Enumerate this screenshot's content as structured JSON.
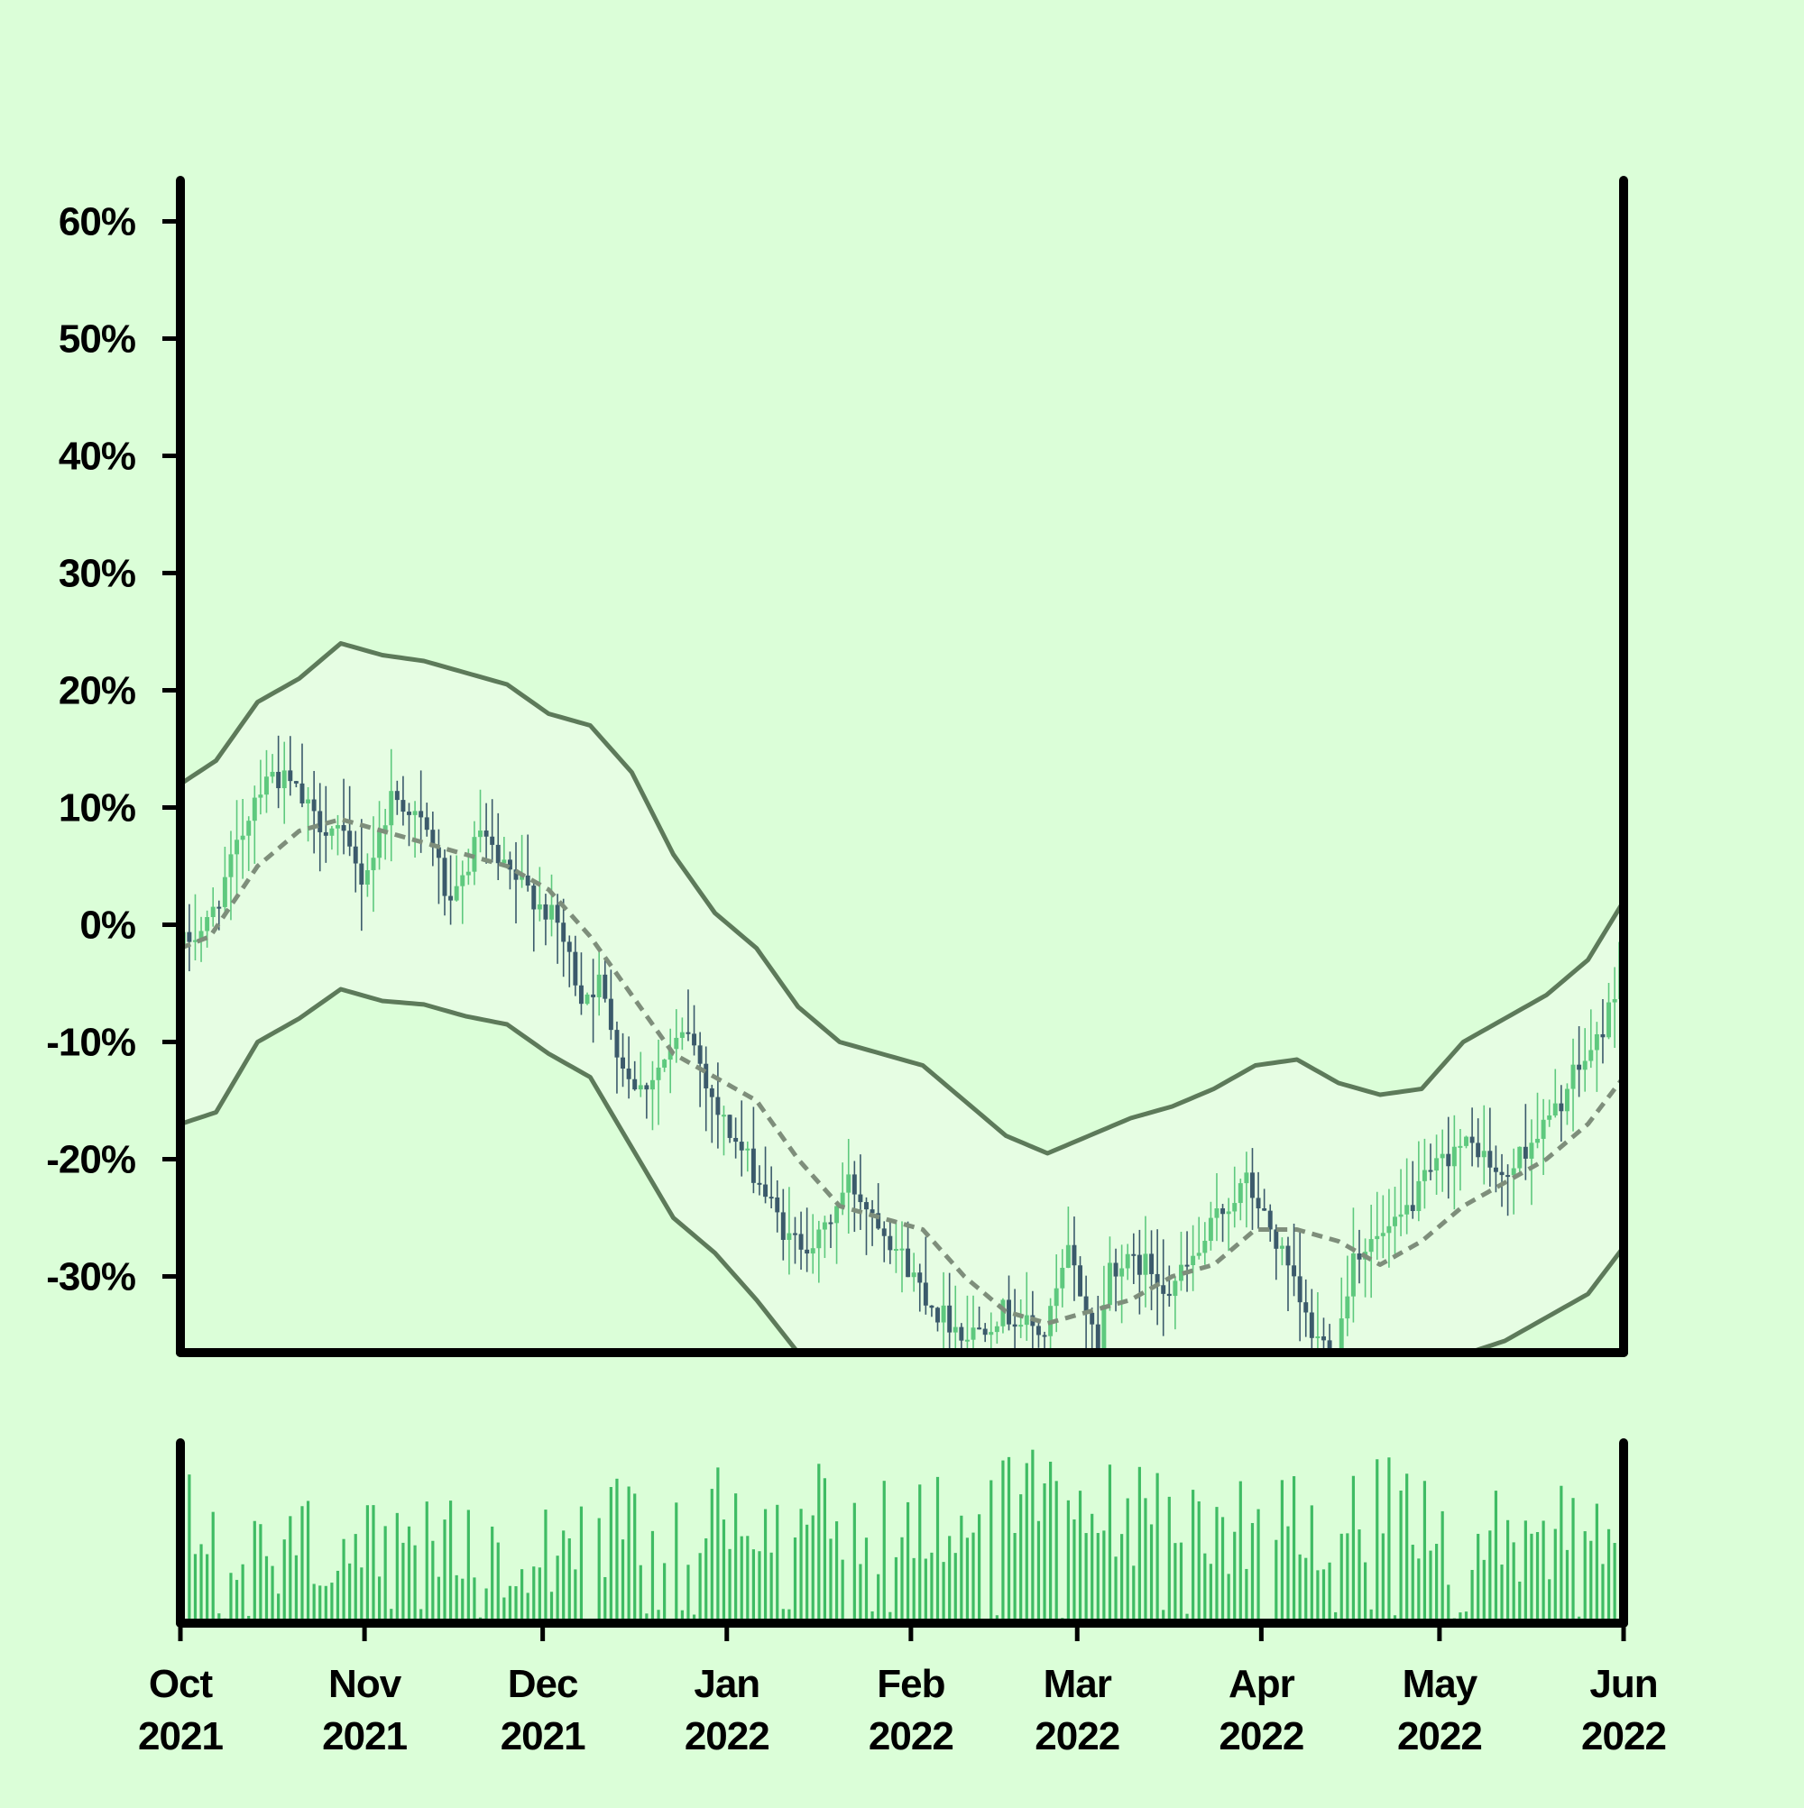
{
  "chart_data": {
    "type": "candlestick",
    "title": "",
    "xlabel": "",
    "ylabel": "",
    "y_unit": "%",
    "ylim": [
      -36.5,
      63.5
    ],
    "y_ticks": [
      {
        "value": 60,
        "label": "60%"
      },
      {
        "value": 50,
        "label": "50%"
      },
      {
        "value": 40,
        "label": "40%"
      },
      {
        "value": 30,
        "label": "30%"
      },
      {
        "value": 20,
        "label": "20%"
      },
      {
        "value": 10,
        "label": "10%"
      },
      {
        "value": 0,
        "label": "0%"
      },
      {
        "value": -10,
        "label": "-10%"
      },
      {
        "value": -20,
        "label": "-20%"
      },
      {
        "value": -30,
        "label": "-30%"
      }
    ],
    "x_range": [
      "2021-10-01",
      "2022-06-01"
    ],
    "x_ticks": [
      {
        "date": "2021-10-01",
        "month": "Oct",
        "year": "2021"
      },
      {
        "date": "2021-11-01",
        "month": "Nov",
        "year": "2021"
      },
      {
        "date": "2021-12-01",
        "month": "Dec",
        "year": "2021"
      },
      {
        "date": "2022-01-01",
        "month": "Jan",
        "year": "2022"
      },
      {
        "date": "2022-02-01",
        "month": "Feb",
        "year": "2022"
      },
      {
        "date": "2022-03-01",
        "month": "Mar",
        "year": "2022"
      },
      {
        "date": "2022-04-01",
        "month": "Apr",
        "year": "2022"
      },
      {
        "date": "2022-05-01",
        "month": "May",
        "year": "2022"
      },
      {
        "date": "2022-06-01",
        "month": "Jun",
        "year": "2022"
      }
    ],
    "grid": false,
    "legend": "none",
    "close_path": [
      [
        "2021-10-01",
        -2
      ],
      [
        "2021-10-06",
        0
      ],
      [
        "2021-10-10",
        5
      ],
      [
        "2021-10-14",
        11
      ],
      [
        "2021-10-16",
        13
      ],
      [
        "2021-10-20",
        12
      ],
      [
        "2021-10-24",
        9
      ],
      [
        "2021-10-28",
        8
      ],
      [
        "2021-11-01",
        4
      ],
      [
        "2021-11-03",
        6
      ],
      [
        "2021-11-06",
        11
      ],
      [
        "2021-11-09",
        10
      ],
      [
        "2021-11-13",
        7
      ],
      [
        "2021-11-16",
        1
      ],
      [
        "2021-11-21",
        8
      ],
      [
        "2021-11-24",
        5
      ],
      [
        "2021-11-29",
        3
      ],
      [
        "2021-12-04",
        0
      ],
      [
        "2021-12-08",
        -6
      ],
      [
        "2021-12-11",
        -5
      ],
      [
        "2021-12-15",
        -12
      ],
      [
        "2021-12-18",
        -14
      ],
      [
        "2021-12-23",
        -11
      ],
      [
        "2021-12-26",
        -9
      ],
      [
        "2021-12-31",
        -16
      ],
      [
        "2022-01-06",
        -21
      ],
      [
        "2022-01-12",
        -27
      ],
      [
        "2022-01-17",
        -27
      ],
      [
        "2022-01-22",
        -22
      ],
      [
        "2022-01-27",
        -25
      ],
      [
        "2022-02-02",
        -30
      ],
      [
        "2022-02-06",
        -33
      ],
      [
        "2022-02-11",
        -35
      ],
      [
        "2022-02-17",
        -33
      ],
      [
        "2022-02-24",
        -35
      ],
      [
        "2022-02-28",
        -28
      ],
      [
        "2022-03-05",
        -36
      ],
      [
        "2022-03-07",
        -29
      ],
      [
        "2022-03-13",
        -29
      ],
      [
        "2022-03-17",
        -31
      ],
      [
        "2022-03-22",
        -28
      ],
      [
        "2022-03-25",
        -25
      ],
      [
        "2022-03-30",
        -22
      ],
      [
        "2022-04-04",
        -27
      ],
      [
        "2022-04-10",
        -35
      ],
      [
        "2022-04-14",
        -36.5
      ],
      [
        "2022-04-17",
        -28
      ],
      [
        "2022-04-24",
        -26
      ],
      [
        "2022-04-29",
        -22
      ],
      [
        "2022-05-04",
        -19
      ],
      [
        "2022-05-08",
        -19
      ],
      [
        "2022-05-12",
        -22
      ],
      [
        "2022-05-16",
        -19
      ],
      [
        "2022-05-21",
        -16
      ],
      [
        "2022-05-24",
        -13
      ],
      [
        "2022-05-28",
        -10
      ],
      [
        "2022-05-31",
        -6
      ],
      [
        "2022-06-01",
        -1
      ]
    ],
    "moving_average": [
      [
        "2021-10-01",
        -2
      ],
      [
        "2021-10-06",
        -1
      ],
      [
        "2021-10-14",
        5
      ],
      [
        "2021-10-21",
        8
      ],
      [
        "2021-10-28",
        9
      ],
      [
        "2021-11-04",
        8
      ],
      [
        "2021-11-11",
        7
      ],
      [
        "2021-11-18",
        6
      ],
      [
        "2021-11-25",
        5
      ],
      [
        "2021-12-02",
        3
      ],
      [
        "2021-12-09",
        -1
      ],
      [
        "2021-12-16",
        -6
      ],
      [
        "2021-12-23",
        -11
      ],
      [
        "2021-12-30",
        -13
      ],
      [
        "2022-01-06",
        -15
      ],
      [
        "2022-01-13",
        -20
      ],
      [
        "2022-01-20",
        -24
      ],
      [
        "2022-01-27",
        -25
      ],
      [
        "2022-02-03",
        -26
      ],
      [
        "2022-02-10",
        -30
      ],
      [
        "2022-02-17",
        -33
      ],
      [
        "2022-02-24",
        -34
      ],
      [
        "2022-03-03",
        -33
      ],
      [
        "2022-03-10",
        -32
      ],
      [
        "2022-03-17",
        -30
      ],
      [
        "2022-03-24",
        -29
      ],
      [
        "2022-03-31",
        -26
      ],
      [
        "2022-04-07",
        -26
      ],
      [
        "2022-04-14",
        -27
      ],
      [
        "2022-04-21",
        -29
      ],
      [
        "2022-04-28",
        -27
      ],
      [
        "2022-05-05",
        -24
      ],
      [
        "2022-05-12",
        -22
      ],
      [
        "2022-05-19",
        -20
      ],
      [
        "2022-05-26",
        -17
      ],
      [
        "2022-06-01",
        -13
      ]
    ],
    "upper_band": [
      [
        "2021-10-01",
        12
      ],
      [
        "2021-10-07",
        14
      ],
      [
        "2021-10-14",
        19
      ],
      [
        "2021-10-21",
        21
      ],
      [
        "2021-10-28",
        24
      ],
      [
        "2021-11-04",
        23
      ],
      [
        "2021-11-11",
        22.5
      ],
      [
        "2021-11-18",
        21.5
      ],
      [
        "2021-11-25",
        20.5
      ],
      [
        "2021-12-02",
        18
      ],
      [
        "2021-12-09",
        17
      ],
      [
        "2021-12-16",
        13
      ],
      [
        "2021-12-23",
        6
      ],
      [
        "2021-12-30",
        1
      ],
      [
        "2022-01-06",
        -2
      ],
      [
        "2022-01-13",
        -7
      ],
      [
        "2022-01-20",
        -10
      ],
      [
        "2022-01-27",
        -11
      ],
      [
        "2022-02-03",
        -12
      ],
      [
        "2022-02-10",
        -15
      ],
      [
        "2022-02-17",
        -18
      ],
      [
        "2022-02-24",
        -19.5
      ],
      [
        "2022-03-03",
        -18
      ],
      [
        "2022-03-10",
        -16.5
      ],
      [
        "2022-03-17",
        -15.5
      ],
      [
        "2022-03-24",
        -14
      ],
      [
        "2022-03-31",
        -12
      ],
      [
        "2022-04-07",
        -11.5
      ],
      [
        "2022-04-14",
        -13.5
      ],
      [
        "2022-04-21",
        -14.5
      ],
      [
        "2022-04-28",
        -14
      ],
      [
        "2022-05-05",
        -10
      ],
      [
        "2022-05-12",
        -8
      ],
      [
        "2022-05-19",
        -6
      ],
      [
        "2022-05-26",
        -3
      ],
      [
        "2022-06-01",
        2
      ]
    ],
    "lower_band": [
      [
        "2021-10-01",
        -17
      ],
      [
        "2021-10-07",
        -16
      ],
      [
        "2021-10-14",
        -10
      ],
      [
        "2021-10-21",
        -8
      ],
      [
        "2021-10-28",
        -5.5
      ],
      [
        "2021-11-04",
        -6.5
      ],
      [
        "2021-11-11",
        -6.8
      ],
      [
        "2021-11-18",
        -7.8
      ],
      [
        "2021-11-25",
        -8.5
      ],
      [
        "2021-12-02",
        -11
      ],
      [
        "2021-12-09",
        -13
      ],
      [
        "2021-12-16",
        -19
      ],
      [
        "2021-12-23",
        -25
      ],
      [
        "2021-12-30",
        -28
      ],
      [
        "2022-01-06",
        -32
      ],
      [
        "2022-01-13",
        -36.5
      ],
      [
        "2022-05-06",
        -36.5
      ],
      [
        "2022-05-12",
        -35.5
      ],
      [
        "2022-05-19",
        -33.5
      ],
      [
        "2022-05-26",
        -31.5
      ],
      [
        "2022-06-01",
        -27.5
      ]
    ],
    "volume_profile": [
      [
        "2021-10-01",
        0.55
      ],
      [
        "2021-10-12",
        0.3
      ],
      [
        "2021-10-24",
        0.45
      ],
      [
        "2021-11-05",
        0.35
      ],
      [
        "2021-11-17",
        0.4
      ],
      [
        "2021-11-29",
        0.45
      ],
      [
        "2021-12-11",
        0.5
      ],
      [
        "2021-12-23",
        0.52
      ],
      [
        "2022-01-04",
        0.62
      ],
      [
        "2022-01-16",
        0.65
      ],
      [
        "2022-01-28",
        0.55
      ],
      [
        "2022-02-09",
        0.62
      ],
      [
        "2022-02-21",
        0.68
      ],
      [
        "2022-03-05",
        0.62
      ],
      [
        "2022-03-17",
        0.58
      ],
      [
        "2022-03-29",
        0.55
      ],
      [
        "2022-04-10",
        0.58
      ],
      [
        "2022-04-22",
        0.62
      ],
      [
        "2022-05-04",
        0.45
      ],
      [
        "2022-05-16",
        0.5
      ],
      [
        "2022-05-28",
        0.55
      ],
      [
        "2022-06-01",
        0.55
      ]
    ],
    "colors": {
      "background": "#dbfed8",
      "band_fill": "#e6fde3",
      "band_line": "#5d7a5a",
      "moving_average": "#7e8e7b",
      "up_candle": "#5ec97e",
      "down_candle": "#3b5a6b",
      "volume_bar": "#3fbc64",
      "axis": "#000000"
    }
  }
}
